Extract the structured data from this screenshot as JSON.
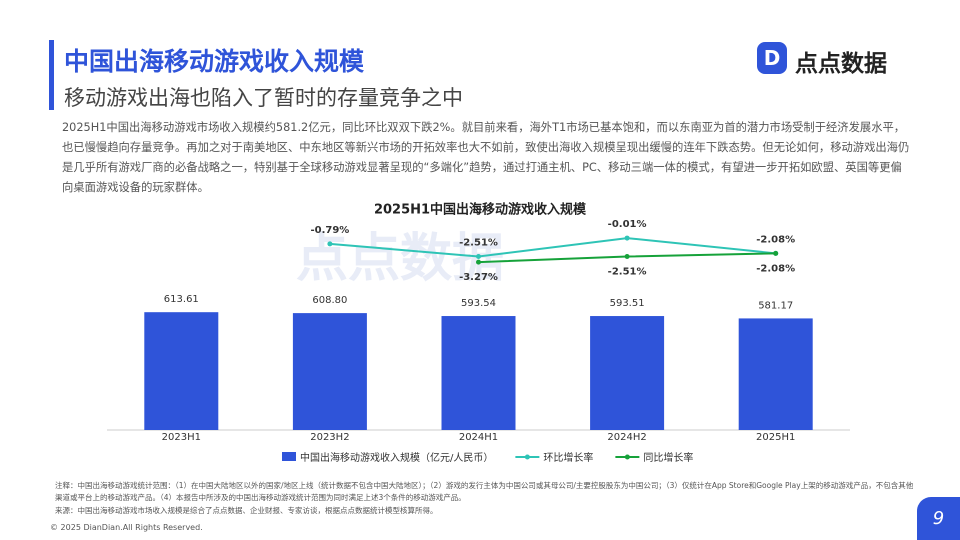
{
  "header": {
    "title": "中国出海移动游戏收入规模",
    "subtitle": "移动游戏出海也陷入了暂时的存量竞争之中",
    "logo": "点点数据"
  },
  "body": {
    "paragraph": "2025H1中国出海移动游戏市场收入规模约581.2亿元，同比环比双双下跌2%。就目前来看，海外T1市场已基本饱和，而以东南亚为首的潜力市场受制于经济发展水平，也已慢慢趋向存量竞争。再加之对于南美地区、中东地区等新兴市场的开拓效率也大不如前，致使出海收入规模呈现出缓慢的连年下跌态势。但无论如何，移动游戏出海仍是几乎所有游戏厂商的必备战略之一，特别基于全球移动游戏显著呈现的“多端化”趋势，通过打通主机、PC、移动三端一体的模式，有望进一步开拓如欧盟、英国等更偏向桌面游戏设备的玩家群体。"
  },
  "chart_data": {
    "type": "bar",
    "title": "2025H1中国出海移动游戏收入规模",
    "watermark": "点点数据",
    "categories": [
      "2023H1",
      "2023H2",
      "2024H1",
      "2024H2",
      "2025H1"
    ],
    "series": [
      {
        "name": "中国出海移动游戏收入规模（亿元/人民币）",
        "type": "bar",
        "color": "#2f54d9",
        "values": [
          613.61,
          608.8,
          593.54,
          593.51,
          581.17
        ],
        "value_labels": [
          "613.61",
          "608.80",
          "593.54",
          "593.51",
          "581.17"
        ]
      },
      {
        "name": "环比增长率",
        "type": "line",
        "axis": "y2",
        "color": "#2ec4b6",
        "label_side": "above",
        "values": [
          null,
          -0.79,
          -2.51,
          -0.01,
          -2.08
        ],
        "value_labels": [
          null,
          "-0.79%",
          "-2.51%",
          "-0.01%",
          "-2.08%"
        ]
      },
      {
        "name": "同比增长率",
        "type": "line",
        "axis": "y2",
        "color": "#16a23a",
        "label_side": "below",
        "values": [
          null,
          null,
          -3.27,
          -2.51,
          -2.08
        ],
        "value_labels": [
          null,
          null,
          "-3.27%",
          "-2.51%",
          "-2.08%"
        ]
      }
    ],
    "ylim": [
      0,
      1000
    ],
    "y2lim": [
      -26,
      0
    ]
  },
  "footer": {
    "notes": "注释：中国出海移动游戏统计范围：（1）在中国大陆地区以外的国家/地区上线（统计数据不包含中国大陆地区）；（2）游戏的发行主体为中国公司或其母公司/主要控股股东为中国公司；（3）仅统计在App Store和Google Play上架的移动游戏产品，不包含其他渠道或平台上的移动游戏产品。（4）本报告中所涉及的中国出海移动游戏统计范围为同时满足上述3个条件的移动游戏产品。",
    "source": "来源：中国出海移动游戏市场收入规模是综合了点点数据、企业财报、专家访谈，根据点点数据统计模型核算所得。",
    "copyright": "© 2025 DianDian.All Rights Reserved.",
    "page": "9"
  }
}
